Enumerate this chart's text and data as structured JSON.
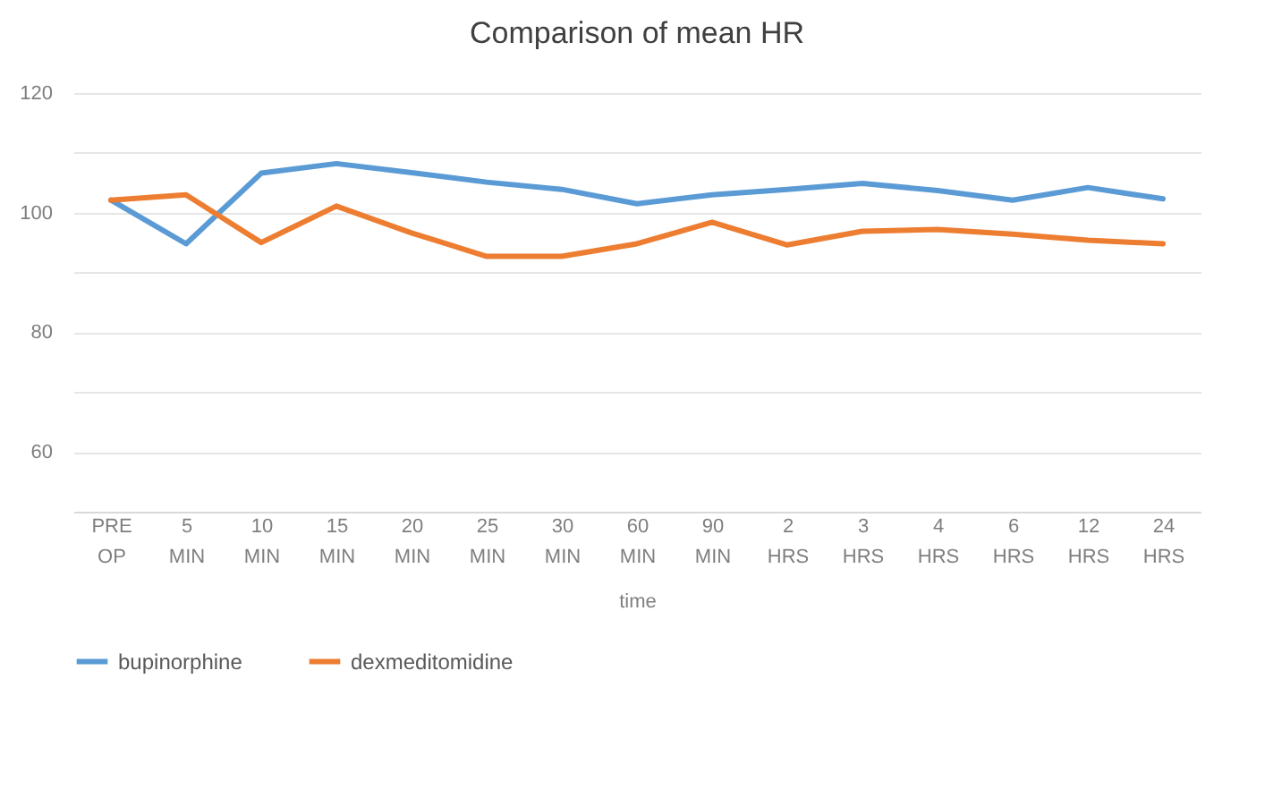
{
  "chart_data": {
    "type": "line",
    "title": "Comparison of mean HR",
    "xlabel": "time",
    "categories": [
      "PRE OP",
      "5 MIN",
      "10 MIN",
      "15 MIN",
      "20 MIN",
      "25 MIN",
      "30 MIN",
      "60 MIN",
      "90 MIN",
      "2 HRS",
      "3 HRS",
      "4 HRS",
      "6 HRS",
      "12 HRS",
      "24 HRS"
    ],
    "series": [
      {
        "name": "bupinorphine",
        "color": "#5b9bd5",
        "values": [
          102.1,
          94.8,
          106.6,
          108.2,
          106.7,
          105.1,
          103.9,
          101.5,
          103.0,
          103.9,
          104.9,
          103.7,
          102.1,
          104.2,
          102.3
        ]
      },
      {
        "name": "dexmeditomidine",
        "color": "#ed7d31",
        "values": [
          102.1,
          103.0,
          95.0,
          101.1,
          96.6,
          92.7,
          92.7,
          94.8,
          98.4,
          94.6,
          96.9,
          97.2,
          96.4,
          95.4,
          94.8
        ]
      }
    ],
    "ylim": [
      50,
      120
    ],
    "yticks": [
      {
        "value": 50,
        "label": null
      },
      60,
      {
        "value": 70,
        "label": null
      },
      80,
      {
        "value": 90,
        "label": null
      },
      100,
      {
        "value": 110,
        "label": null
      },
      120
    ],
    "grid": "y",
    "legend": "bottom",
    "marker": "none",
    "line_style": "solid"
  }
}
